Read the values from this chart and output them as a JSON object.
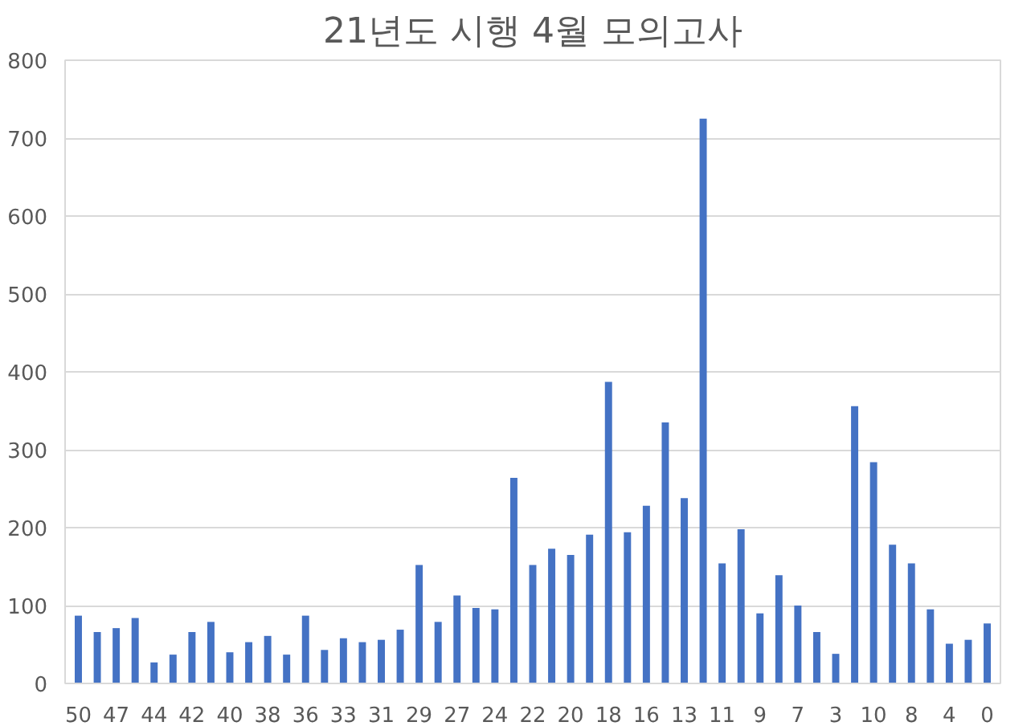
{
  "chart_data": {
    "type": "bar",
    "title": "21년도 시행 4월 모의고사",
    "categories": [
      "50",
      null,
      "47",
      null,
      "44",
      null,
      "42",
      null,
      "40",
      null,
      "38",
      null,
      "36",
      null,
      "33",
      null,
      "31",
      null,
      "29",
      null,
      "27",
      null,
      "24",
      null,
      "22",
      null,
      "20",
      null,
      "18",
      null,
      "16",
      null,
      "13",
      null,
      "11",
      null,
      "9",
      null,
      "7",
      null,
      "3",
      null,
      "10",
      null,
      "8",
      null,
      "4",
      null,
      "0"
    ],
    "values": [
      87,
      66,
      71,
      84,
      27,
      37,
      66,
      79,
      40,
      53,
      61,
      37,
      87,
      43,
      58,
      53,
      56,
      69,
      152,
      79,
      113,
      97,
      95,
      264,
      152,
      173,
      165,
      191,
      387,
      194,
      228,
      335,
      238,
      725,
      154,
      198,
      90,
      139,
      100,
      66,
      38,
      356,
      284,
      178,
      154,
      95,
      51,
      56,
      77
    ],
    "color": "#4472c4",
    "ylim": [
      0,
      800
    ],
    "yticks": [
      0,
      100,
      200,
      300,
      400,
      500,
      600,
      700,
      800
    ],
    "grid": "y"
  }
}
